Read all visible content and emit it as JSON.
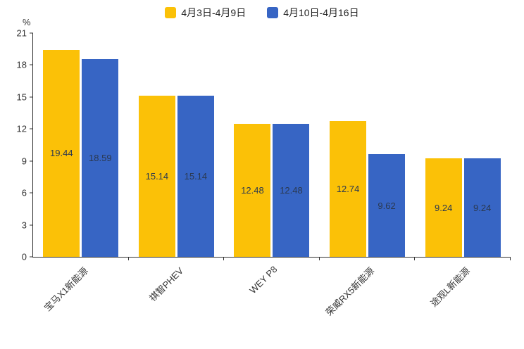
{
  "chart_data": {
    "type": "bar",
    "title": "",
    "xlabel": "",
    "ylabel": "%",
    "ylim": [
      0,
      21
    ],
    "yticks": [
      0,
      3,
      6,
      9,
      12,
      15,
      18,
      21
    ],
    "grid": false,
    "legend_position": "top",
    "categories": [
      "宝马X1新能源",
      "祺智PHEV",
      "WEY P8",
      "荣威RX5新能源",
      "途观L新能源"
    ],
    "series": [
      {
        "name": "4月3日-4月9日",
        "color": "#FBC107",
        "values": [
          19.44,
          15.14,
          12.48,
          12.74,
          9.24
        ]
      },
      {
        "name": "4月10日-4月16日",
        "color": "#3765C4",
        "values": [
          18.59,
          15.14,
          12.48,
          9.62,
          9.24
        ]
      }
    ]
  }
}
